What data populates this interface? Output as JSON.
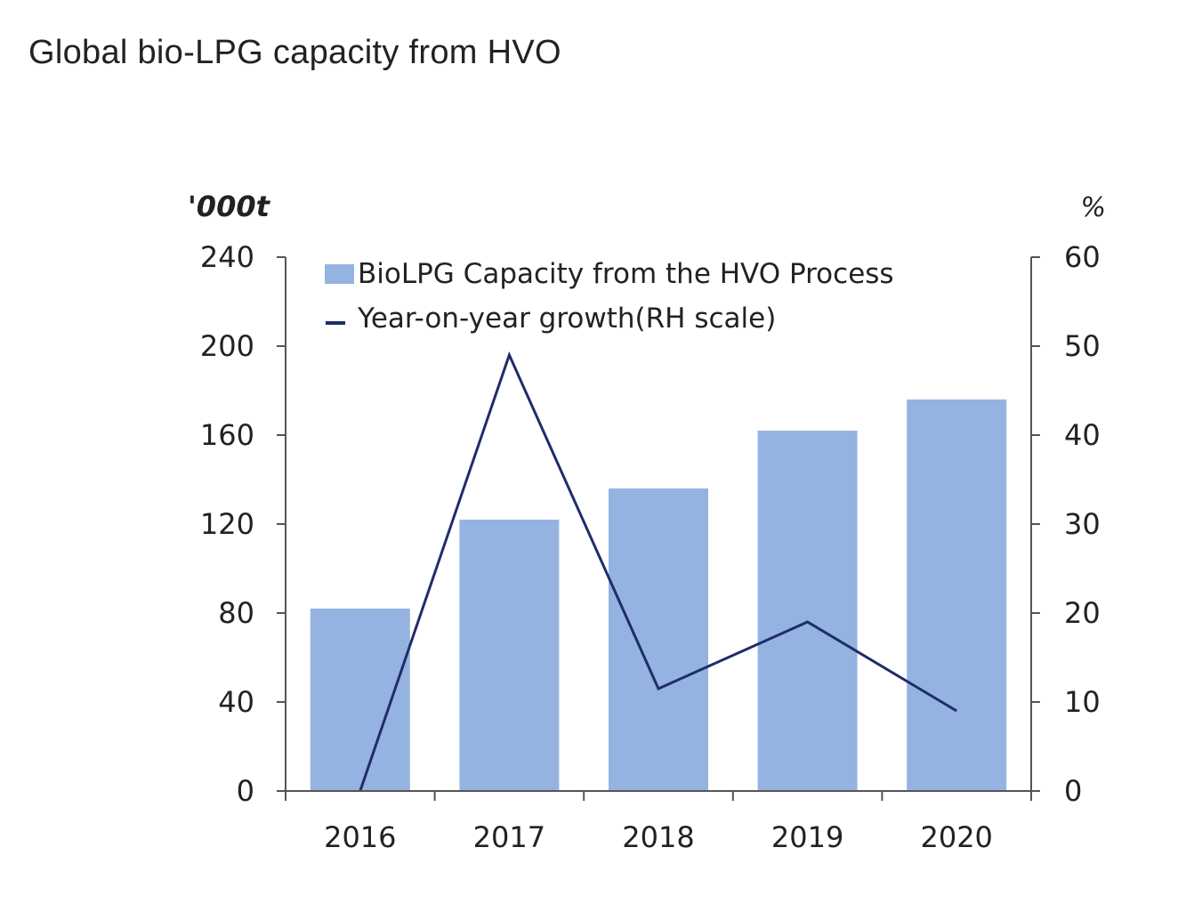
{
  "page": {
    "title": "Global bio-LPG capacity from HVO"
  },
  "chart_data": {
    "type": "bar",
    "categories": [
      "2016",
      "2017",
      "2018",
      "2019",
      "2020"
    ],
    "series": [
      {
        "name": "BioLPG Capacity from the HVO Process",
        "type": "bar",
        "axis": "left",
        "color": "#95b3e0",
        "values": [
          82,
          122,
          136,
          162,
          176
        ]
      },
      {
        "name": "Year-on-year growth(RH scale)",
        "type": "line",
        "axis": "right",
        "color": "#1f2d6b",
        "values": [
          0,
          49,
          11.5,
          19,
          9
        ]
      }
    ],
    "y_left": {
      "label": "'000t",
      "min": 0,
      "max": 240,
      "ticks": [
        0,
        40,
        80,
        120,
        160,
        200,
        240
      ]
    },
    "y_right": {
      "label": "%",
      "min": 0,
      "max": 60,
      "ticks": [
        0,
        10,
        20,
        30,
        40,
        50,
        60
      ]
    },
    "grid": false,
    "legend_position": "top-left"
  }
}
